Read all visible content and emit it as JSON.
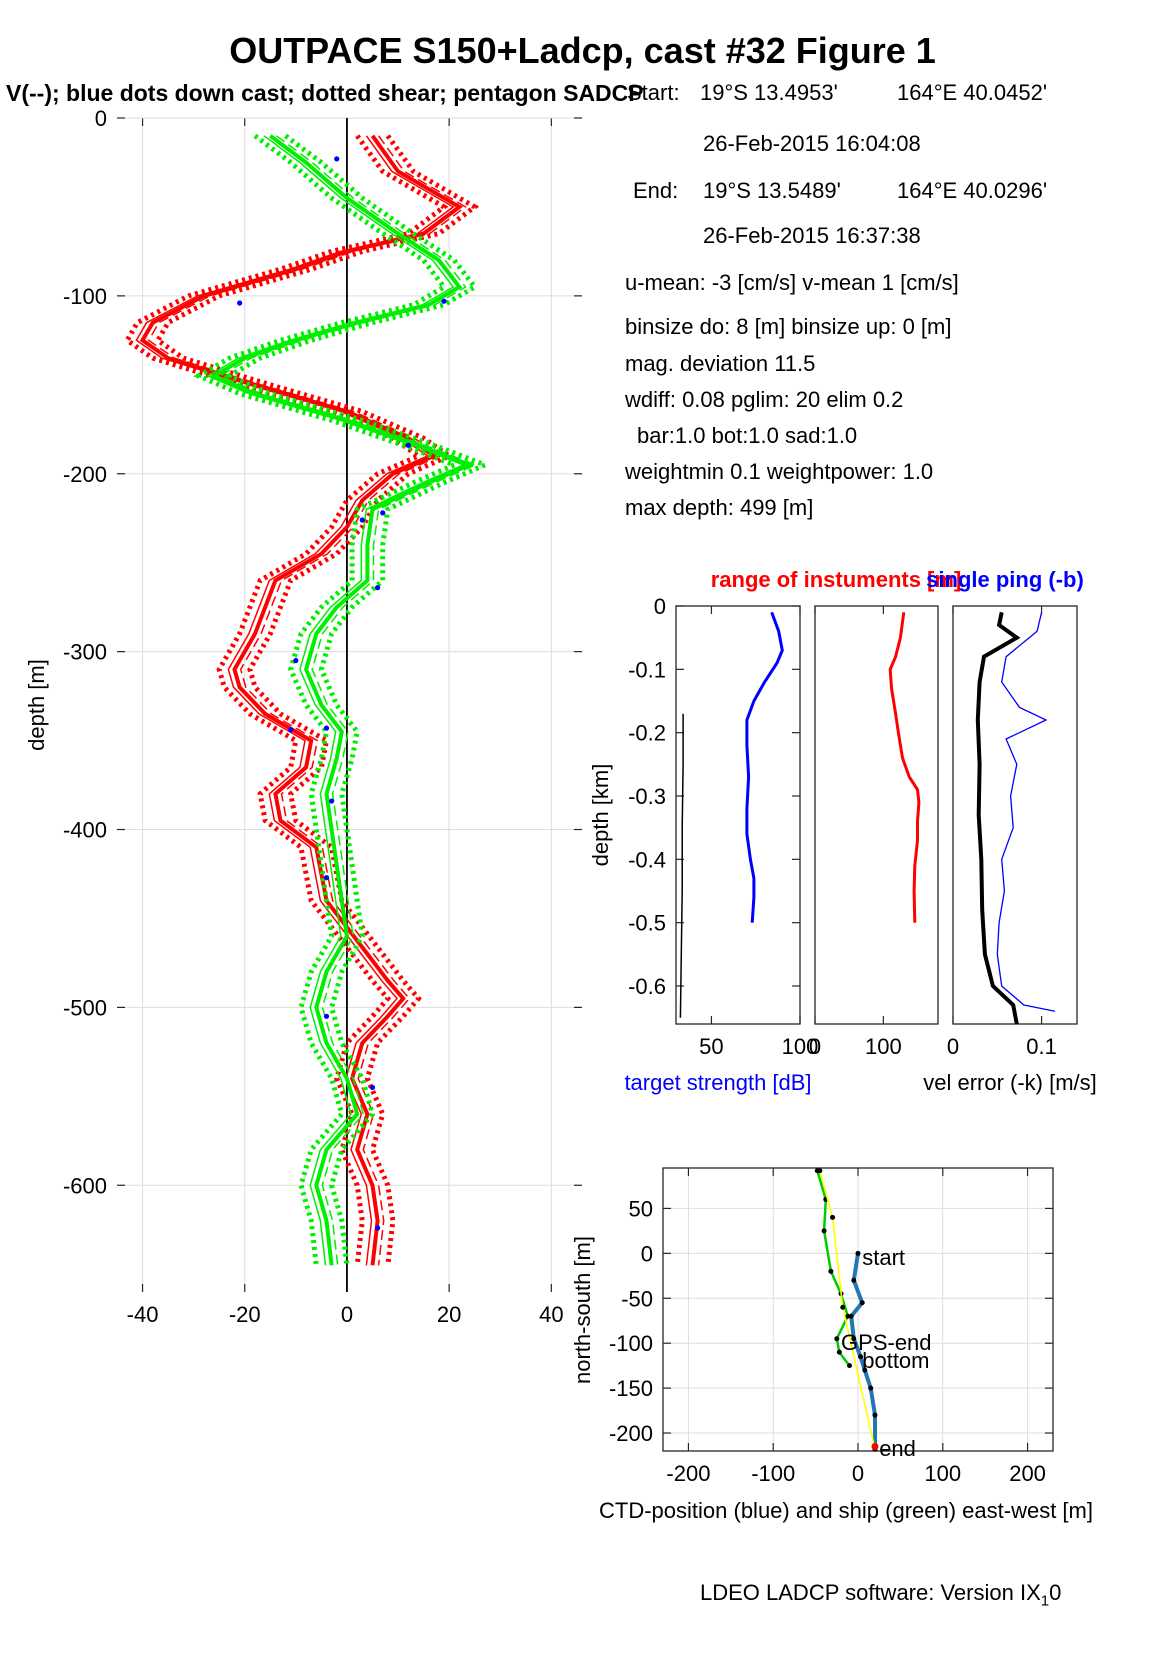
{
  "title": "OUTPACE S150+Ladcp, cast #32  Figure 1",
  "subtitle": "V(--); blue dots down cast; dotted shear; pentagon SADCP",
  "info": {
    "start_label": "Start:",
    "start_lat": "19°S 13.4953'",
    "start_lon": "164°E 40.0452'",
    "start_time": "26-Feb-2015 16:04:08",
    "end_label": "End:",
    "end_lat": "19°S 13.5489'",
    "end_lon": "164°E 40.0296'",
    "end_time": "26-Feb-2015 16:37:38",
    "means": "u-mean:  -3 [cm/s]    v-mean   1 [cm/s]",
    "binsize": "binsize do: 8 [m]  binsize up:  0 [m]",
    "magdev": "mag. deviation 11.5",
    "wdiff": "wdiff: 0.08  pglim: 20  elim 0.2",
    "bar": "bar:1.0 bot:1.0 sad:1.0",
    "weight": "weightmin 0.1  weightpower: 1.0",
    "maxdepth": "max depth: 499 [m]"
  },
  "footer": {
    "text": "LDEO LADCP software: Version IX",
    "sub": "1",
    "tail": "0"
  },
  "colors": {
    "u": "#ff0000",
    "v": "#00ee00",
    "downcast_dot": "#0000ff",
    "ship": "#00cc00",
    "ctd": "#1f77b4",
    "yellow": "#ffff00"
  },
  "chart_data": [
    {
      "type": "line",
      "ylabel": "depth [m]",
      "xlim": [
        -45,
        46
      ],
      "ylim": [
        -660,
        0
      ],
      "xticks": [
        -40,
        -20,
        0,
        20,
        40
      ],
      "yticks": [
        0,
        -100,
        -200,
        -300,
        -400,
        -500,
        -600
      ],
      "grid": true,
      "series": [
        {
          "color": "red",
          "depth": [
            -10,
            -30,
            -50,
            -65,
            -75,
            -85,
            -100,
            -115,
            -125,
            -135,
            -150,
            -165,
            -180,
            -190,
            -200,
            -215,
            -230,
            -245,
            -260,
            -275,
            -290,
            -310,
            -320,
            -335,
            -350,
            -365,
            -380,
            -395,
            -410,
            -425,
            -440,
            -455,
            -470,
            -485,
            -495,
            -505,
            -520,
            -540,
            -560,
            -580,
            -600,
            -620,
            -645
          ],
          "values": [
            5,
            10,
            22,
            15,
            0,
            -10,
            -28,
            -38,
            -40,
            -35,
            -18,
            0,
            12,
            17,
            9,
            3,
            0,
            -5,
            -14,
            -16,
            -18,
            -22,
            -21,
            -16,
            -7,
            -8,
            -14,
            -13,
            -6,
            -5,
            -4,
            0,
            4,
            8,
            11,
            8,
            3,
            1,
            4,
            2,
            5,
            6,
            5
          ]
        },
        {
          "color": "green",
          "depth": [
            -10,
            -25,
            -45,
            -65,
            -80,
            -95,
            -105,
            -115,
            -125,
            -135,
            -145,
            -155,
            -170,
            -185,
            -195,
            -205,
            -220,
            -240,
            -260,
            -275,
            -290,
            -310,
            -330,
            -345,
            -360,
            -380,
            -400,
            -420,
            -440,
            -460,
            -480,
            -500,
            -520,
            -540,
            -560,
            -580,
            -600,
            -620,
            -645
          ],
          "values": [
            -15,
            -8,
            0,
            10,
            18,
            22,
            16,
            2,
            -10,
            -20,
            -26,
            -18,
            0,
            15,
            24,
            16,
            5,
            4,
            4,
            -2,
            -6,
            -8,
            -5,
            -1,
            -2,
            -4,
            -3,
            -2,
            -1,
            0,
            -4,
            -6,
            -4,
            0,
            2,
            -4,
            -6,
            -4,
            -3
          ]
        }
      ],
      "downcast_dots": [
        {
          "x": -2,
          "y": -23
        },
        {
          "x": 19,
          "y": -103
        },
        {
          "x": -21,
          "y": -104
        },
        {
          "x": 12,
          "y": -184
        },
        {
          "x": 7,
          "y": -222
        },
        {
          "x": 3,
          "y": -226
        },
        {
          "x": 6,
          "y": -264
        },
        {
          "x": -10,
          "y": -305
        },
        {
          "x": -11,
          "y": -344
        },
        {
          "x": -4,
          "y": -343
        },
        {
          "x": -3,
          "y": -384
        },
        {
          "x": -4,
          "y": -427
        },
        {
          "x": -4,
          "y": -505
        },
        {
          "x": 5,
          "y": -545
        },
        {
          "x": 6,
          "y": -624
        }
      ]
    },
    {
      "type": "line",
      "title": "range of instuments [m]",
      "xlabel": "target strength [dB]",
      "ylabel": "depth [km]",
      "xlim": [
        30,
        100
      ],
      "ylim": [
        -0.66,
        0
      ],
      "xticks": [
        50,
        100
      ],
      "yticks": [
        0,
        -0.1,
        -0.2,
        -0.3,
        -0.4,
        -0.5,
        -0.6
      ],
      "series": [
        {
          "color": "blue",
          "depth": [
            -0.01,
            -0.04,
            -0.07,
            -0.09,
            -0.12,
            -0.15,
            -0.18,
            -0.22,
            -0.27,
            -0.32,
            -0.36,
            -0.4,
            -0.43,
            -0.46,
            -0.5
          ],
          "values": [
            84,
            88,
            90,
            87,
            80,
            74,
            70,
            70,
            71,
            70,
            70,
            72,
            74,
            74,
            73
          ]
        },
        {
          "color": "black",
          "depth": [
            -0.17,
            -0.25,
            -0.35,
            -0.45,
            -0.55,
            -0.65
          ],
          "values": [
            34,
            34,
            33.5,
            33.5,
            33,
            32.5
          ]
        }
      ]
    },
    {
      "type": "line",
      "xlim": [
        0,
        180
      ],
      "ylim": [
        -0.66,
        0
      ],
      "xticks": [
        0,
        100
      ],
      "series": [
        {
          "color": "red",
          "depth": [
            -0.01,
            -0.05,
            -0.08,
            -0.1,
            -0.13,
            -0.17,
            -0.2,
            -0.24,
            -0.27,
            -0.29,
            -0.31,
            -0.34,
            -0.37,
            -0.41,
            -0.45,
            -0.5
          ],
          "values": [
            130,
            125,
            118,
            110,
            112,
            118,
            122,
            128,
            138,
            150,
            152,
            150,
            150,
            146,
            145,
            146
          ]
        }
      ]
    },
    {
      "type": "line",
      "xlabel": "vel error (-k) [m/s]",
      "title": "single ping (-b)",
      "xlim": [
        0,
        0.14
      ],
      "ylim": [
        -0.66,
        0
      ],
      "xticks": [
        0,
        0.1
      ],
      "series": [
        {
          "color": "black",
          "depth": [
            -0.01,
            -0.03,
            -0.05,
            -0.08,
            -0.12,
            -0.18,
            -0.25,
            -0.33,
            -0.4,
            -0.48,
            -0.55,
            -0.6,
            -0.63,
            -0.66
          ],
          "values": [
            0.055,
            0.052,
            0.072,
            0.035,
            0.03,
            0.028,
            0.03,
            0.029,
            0.032,
            0.033,
            0.036,
            0.045,
            0.068,
            0.072
          ]
        },
        {
          "color": "blue",
          "depth": [
            -0.01,
            -0.04,
            -0.08,
            -0.12,
            -0.16,
            -0.18,
            -0.21,
            -0.25,
            -0.3,
            -0.35,
            -0.4,
            -0.45,
            -0.5,
            -0.55,
            -0.6,
            -0.63,
            -0.64
          ],
          "values": [
            0.1,
            0.095,
            0.06,
            0.055,
            0.075,
            0.105,
            0.06,
            0.072,
            0.065,
            0.068,
            0.055,
            0.058,
            0.052,
            0.05,
            0.055,
            0.08,
            0.115
          ]
        }
      ]
    },
    {
      "type": "line",
      "xlabel": "CTD-position (blue) and ship (green) east-west [m]",
      "ylabel": "north-south [m]",
      "xlim": [
        -230,
        230
      ],
      "ylim": [
        -220,
        95
      ],
      "xticks": [
        -200,
        -100,
        0,
        100,
        200
      ],
      "yticks": [
        50,
        0,
        -50,
        -100,
        -150,
        -200
      ],
      "grid": true,
      "annotations": [
        {
          "text": "start",
          "x": 5,
          "y": -5
        },
        {
          "text": "GPS-end",
          "x": -20,
          "y": -100
        },
        {
          "text": "bottom",
          "x": 5,
          "y": -120
        },
        {
          "text": "end",
          "x": 25,
          "y": -218
        }
      ],
      "series": [
        {
          "color": "ctd",
          "x": [
            0,
            -5,
            5,
            -8,
            -5,
            3,
            8,
            15,
            20,
            20
          ],
          "y": [
            0,
            -30,
            -55,
            -70,
            -95,
            -115,
            -130,
            -150,
            -180,
            -215
          ]
        },
        {
          "color": "ship",
          "x": [
            -48,
            -38,
            -40,
            -32,
            -20,
            -12,
            -25,
            -22,
            -10
          ],
          "y": [
            92,
            60,
            25,
            -20,
            -45,
            -70,
            -95,
            -110,
            -125
          ]
        },
        {
          "color": "yellow",
          "x": [
            -45,
            -30,
            -18,
            20
          ],
          "y": [
            92,
            40,
            -60,
            -218
          ]
        }
      ]
    }
  ]
}
